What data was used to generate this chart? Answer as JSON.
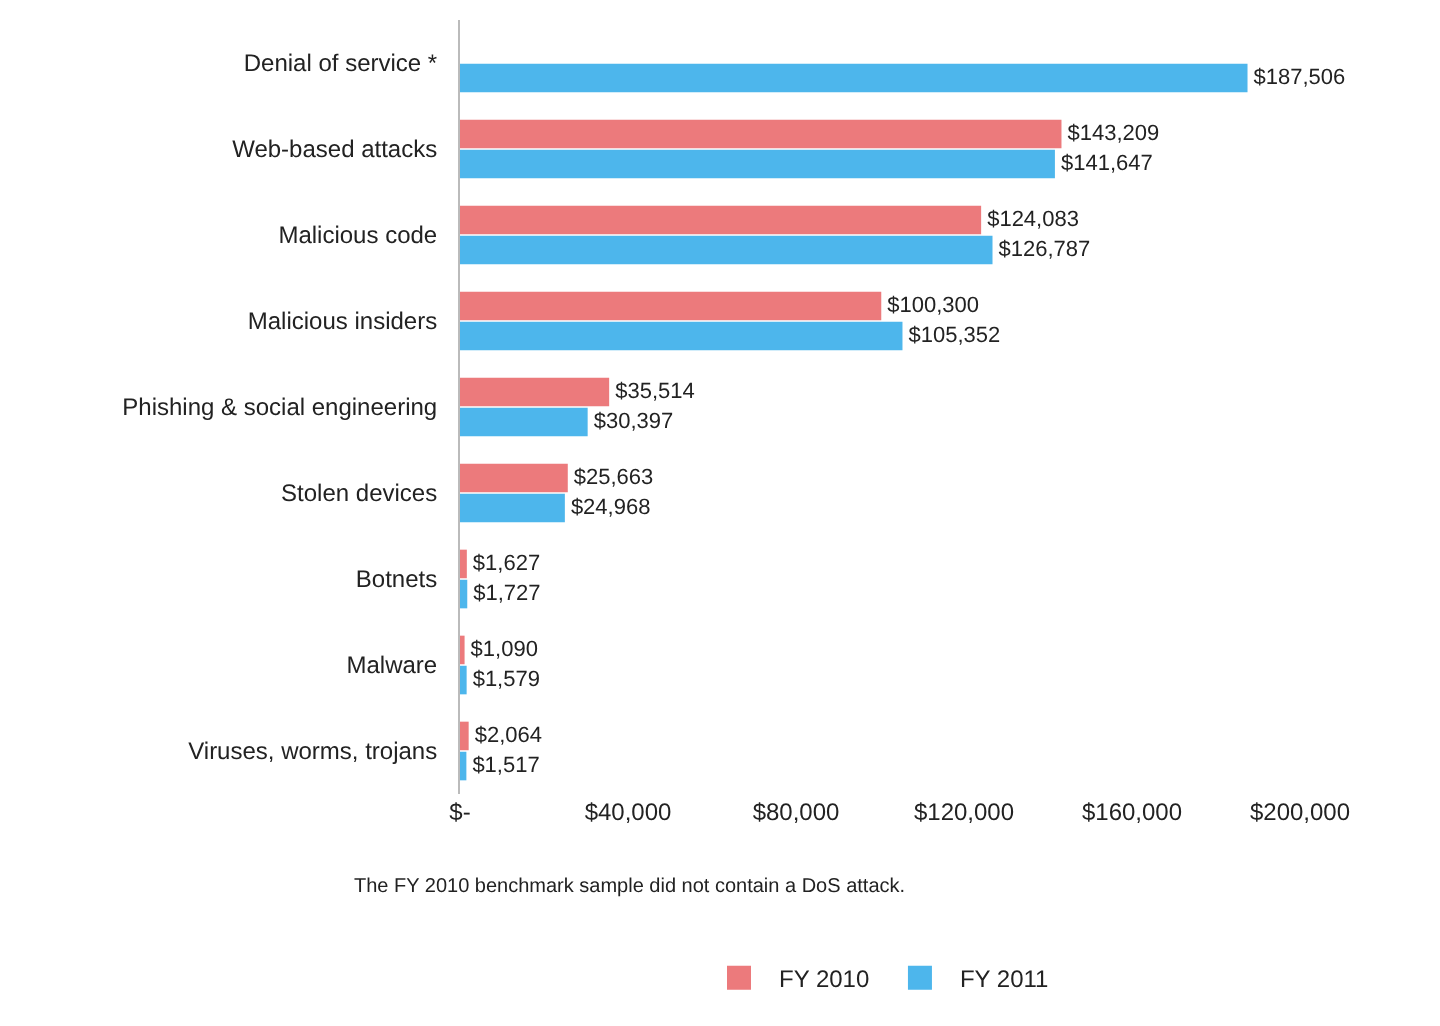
{
  "chart_data": {
    "type": "bar",
    "orientation": "horizontal",
    "categories": [
      "Denial of service *",
      "Web-based attacks",
      "Malicious code",
      "Malicious insiders",
      "Phishing & social engineering",
      "Stolen devices",
      "Botnets",
      "Malware",
      "Viruses, worms, trojans"
    ],
    "series": [
      {
        "name": "FY 2010",
        "color": "#ec7a7c",
        "values": [
          null,
          143209,
          124083,
          100300,
          35514,
          25663,
          1627,
          1090,
          2064
        ],
        "value_labels": [
          null,
          "$143,209",
          "$124,083",
          "$100,300",
          "$35,514",
          "$25,663",
          "$1,627",
          "$1,090",
          "$2,064"
        ]
      },
      {
        "name": "FY 2011",
        "color": "#4db6ec",
        "values": [
          187506,
          141647,
          126787,
          105352,
          30397,
          24968,
          1727,
          1579,
          1517
        ],
        "value_labels": [
          "$187,506",
          "$141,647",
          "$126,787",
          "$105,352",
          "$30,397",
          "$24,968",
          "$1,727",
          "$1,579",
          "$1,517"
        ]
      }
    ],
    "xlim": [
      0,
      200000
    ],
    "xticks": [
      {
        "value": 0,
        "label": "$-"
      },
      {
        "value": 40000,
        "label": "$40,000"
      },
      {
        "value": 80000,
        "label": "$80,000"
      },
      {
        "value": 120000,
        "label": "$120,000"
      },
      {
        "value": 160000,
        "label": "$160,000"
      },
      {
        "value": 200000,
        "label": "$200,000"
      }
    ],
    "grid": false,
    "legend": "bottom",
    "annotations": [
      "The FY 2010 benchmark sample did not contain a DoS attack."
    ]
  }
}
